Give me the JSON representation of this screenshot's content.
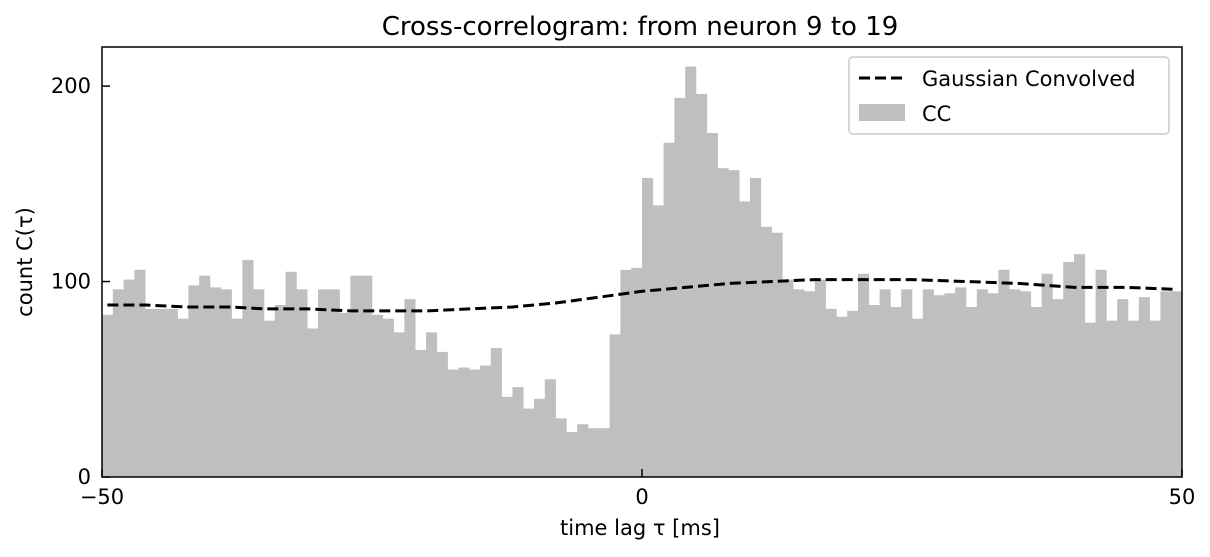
{
  "chart_data": {
    "type": "bar",
    "title": "Cross-correlogram: from neuron 9 to 19",
    "xlabel": "time lag τ [ms]",
    "ylabel": "count C(τ)",
    "xlim": [
      -50,
      50
    ],
    "ylim": [
      0,
      220
    ],
    "xticks": [
      "−50",
      "0",
      "50"
    ],
    "yticks": [
      "0",
      "100",
      "200"
    ],
    "bin_width": 1,
    "bin_start": -50,
    "grid": false,
    "legend_position": "top-right",
    "series": [
      {
        "name": "CC",
        "kind": "histogram",
        "color": "#bfbfbf",
        "values": [
          83,
          96,
          101,
          106,
          86,
          86,
          86,
          81,
          98,
          103,
          97,
          96,
          81,
          111,
          96,
          80,
          88,
          105,
          96,
          76,
          96,
          96,
          84,
          103,
          103,
          83,
          81,
          74,
          91,
          65,
          74,
          64,
          55,
          56,
          55,
          57,
          66,
          41,
          46,
          35,
          40,
          50,
          30,
          23,
          27,
          25,
          25,
          73,
          106,
          107,
          153,
          139,
          171,
          194,
          210,
          196,
          176,
          158,
          157,
          141,
          153,
          128,
          125,
          101,
          96,
          95,
          101,
          86,
          82,
          85,
          104,
          88,
          96,
          87,
          96,
          81,
          96,
          93,
          94,
          97,
          87,
          96,
          94,
          106,
          96,
          95,
          87,
          104,
          91,
          110,
          114,
          79,
          106,
          80,
          91,
          80,
          92,
          80,
          95,
          95
        ]
      },
      {
        "name": "Gaussian Convolved",
        "kind": "line",
        "style": "dashed",
        "color": "#000000",
        "x": [
          -49.5,
          -46,
          -42,
          -38,
          -35,
          -31,
          -27,
          -23,
          -20,
          -16,
          -12,
          -8,
          -4,
          0,
          4,
          8,
          12,
          16,
          20,
          25,
          30,
          35,
          40,
          45,
          49.5
        ],
        "values": [
          88,
          88,
          87,
          87,
          86,
          86,
          85,
          85,
          85,
          86,
          87,
          89,
          92,
          95,
          97,
          99,
          100,
          101,
          101,
          101,
          100,
          99,
          97,
          97,
          96
        ]
      }
    ]
  }
}
